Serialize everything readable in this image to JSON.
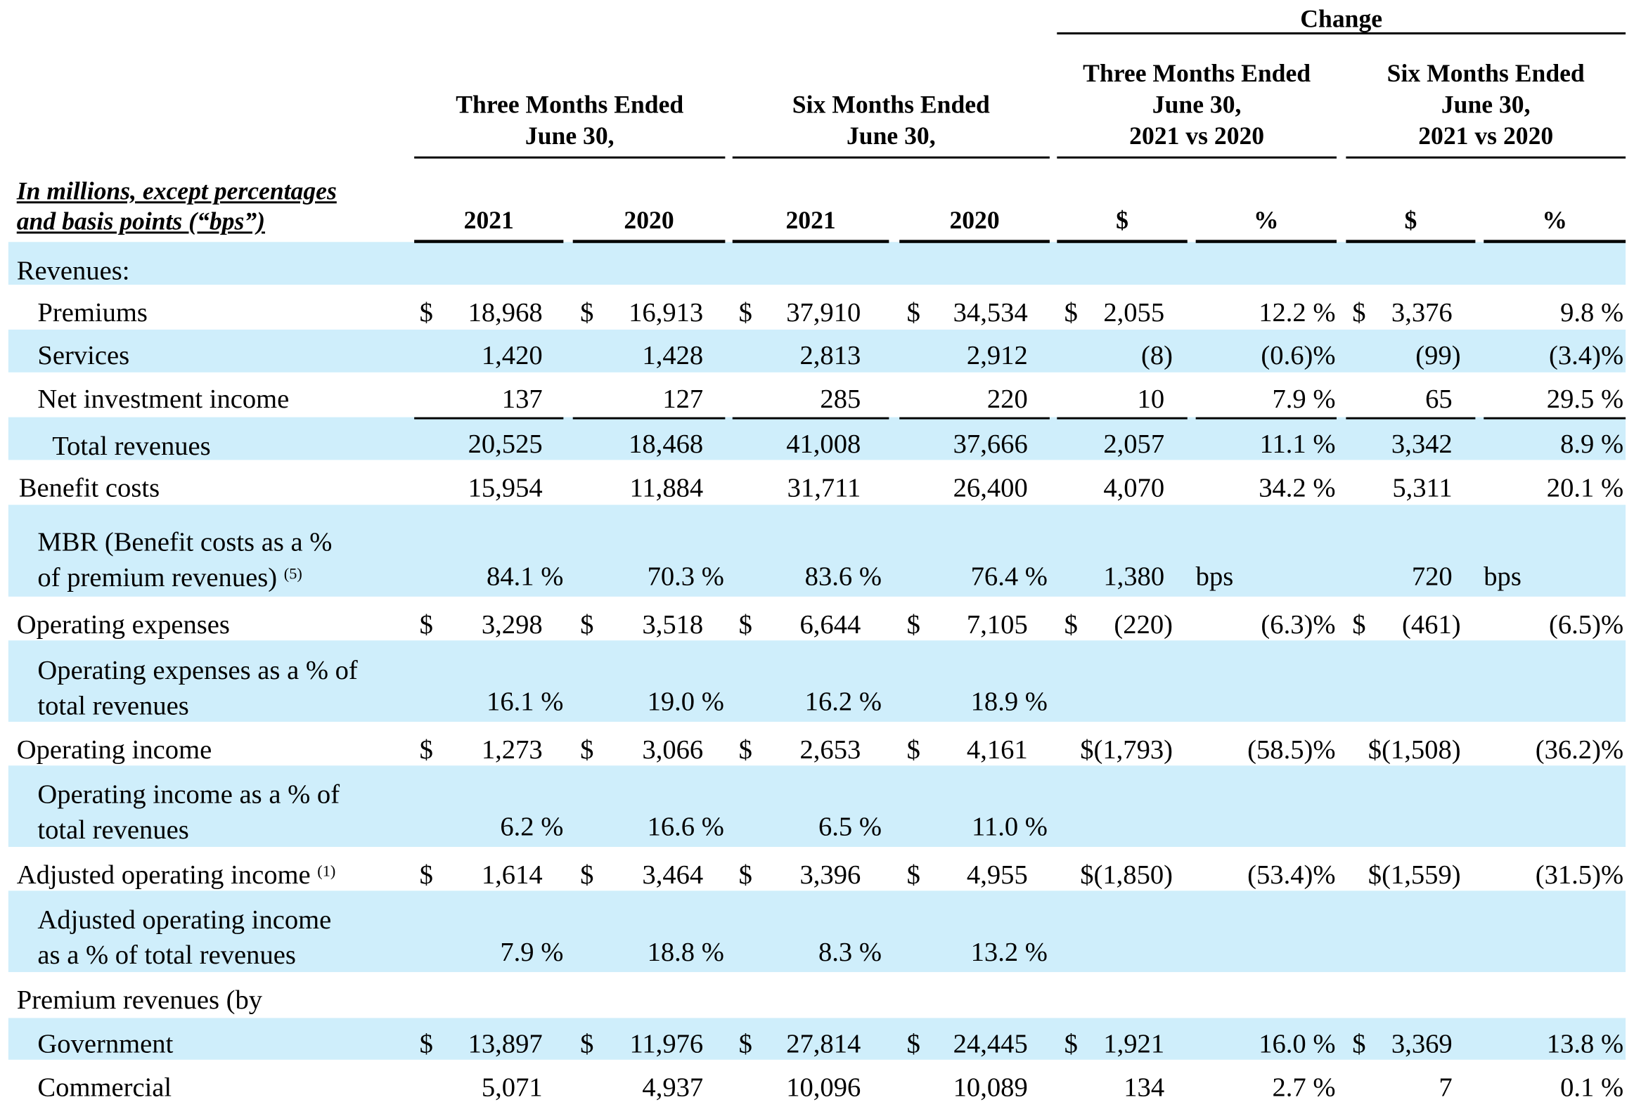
{
  "header": {
    "change": "Change",
    "three_months": [
      "Three Months Ended",
      "June 30,"
    ],
    "six_months": [
      "Six Months Ended",
      "June 30,"
    ],
    "chg_three": [
      "Three Months Ended",
      "June 30,",
      "2021 vs 2020"
    ],
    "chg_six": [
      "Six Months Ended",
      "June 30,",
      "2021 vs 2020"
    ],
    "units_note": [
      "In millions, except percentages",
      "and basis points (“bps”)"
    ],
    "col_labels": [
      "2021",
      "2020",
      "2021",
      "2020",
      "$",
      "%",
      "$",
      "%"
    ]
  },
  "rows": {
    "revenues_header": "Revenues:",
    "premiums": {
      "label": "Premiums",
      "d": [
        "$",
        "$",
        "$",
        "$",
        "$",
        "",
        "$",
        ""
      ],
      "v": [
        "18,968",
        "16,913",
        "37,910",
        "34,534",
        "2,055",
        "12.2 %",
        "3,376",
        "9.8 %"
      ]
    },
    "services": {
      "label": "Services",
      "v": [
        "1,420",
        "1,428",
        "2,813",
        "2,912",
        "(8)",
        "(0.6)%",
        "(99)",
        "(3.4)%"
      ]
    },
    "nii": {
      "label": "Net investment income",
      "v": [
        "137",
        "127",
        "285",
        "220",
        "10",
        "7.9 %",
        "65",
        "29.5 %"
      ]
    },
    "total_revenues": {
      "label": "Total revenues",
      "v": [
        "20,525",
        "18,468",
        "41,008",
        "37,666",
        "2,057",
        "11.1 %",
        "3,342",
        "8.9 %"
      ]
    },
    "benefit_costs": {
      "label": "Benefit costs",
      "v": [
        "15,954",
        "11,884",
        "31,711",
        "26,400",
        "4,070",
        "34.2 %",
        "5,311",
        "20.1 %"
      ]
    },
    "mbr": {
      "label1": "MBR (Benefit costs as a %",
      "label2": "of premium revenues)",
      "sup": "(5)",
      "v": [
        "84.1 %",
        "70.3 %",
        "83.6 %",
        "76.4 %",
        "1,380",
        "bps",
        "720",
        "bps"
      ]
    },
    "opex": {
      "label": "Operating expenses",
      "v": [
        "3,298",
        "3,518",
        "6,644",
        "7,105",
        "(220)",
        "(6.3)%",
        "(461)",
        "(6.5)%"
      ]
    },
    "opex_pct": {
      "label1": "Operating expenses as a % of",
      "label2": "total revenues",
      "v": [
        "16.1 %",
        "19.0 %",
        "16.2 %",
        "18.9 %"
      ]
    },
    "opinc": {
      "label": "Operating income",
      "v": [
        "1,273",
        "3,066",
        "2,653",
        "4,161",
        "$(1,793)",
        "(58.5)%",
        "$(1,508)",
        "(36.2)%"
      ]
    },
    "opinc_pct": {
      "label1": "Operating income as a % of",
      "label2": "total revenues",
      "v": [
        "6.2 %",
        "16.6 %",
        "6.5 %",
        "11.0 %"
      ]
    },
    "adj_opinc": {
      "label": "Adjusted operating income",
      "sup": "(1)",
      "v": [
        "1,614",
        "3,464",
        "3,396",
        "4,955",
        "$(1,850)",
        "(53.4)%",
        "$(1,559)",
        "(31.5)%"
      ]
    },
    "adj_opinc_pct": {
      "label1": "Adjusted operating income",
      "label2": "as a % of total revenues",
      "v": [
        "7.9 %",
        "18.8 %",
        "8.3 %",
        "13.2 %"
      ]
    },
    "prem_by": "Premium revenues (by",
    "government": {
      "label": "Government",
      "v": [
        "13,897",
        "11,976",
        "27,814",
        "24,445",
        "1,921",
        "16.0 %",
        "3,369",
        "13.8 %"
      ]
    },
    "commercial": {
      "label": "Commercial",
      "v": [
        "5,071",
        "4,937",
        "10,096",
        "10,089",
        "134",
        "2.7 %",
        "7",
        "0.1 %"
      ]
    }
  },
  "colors": {
    "band": "#cfeefb",
    "text": "#000000"
  }
}
